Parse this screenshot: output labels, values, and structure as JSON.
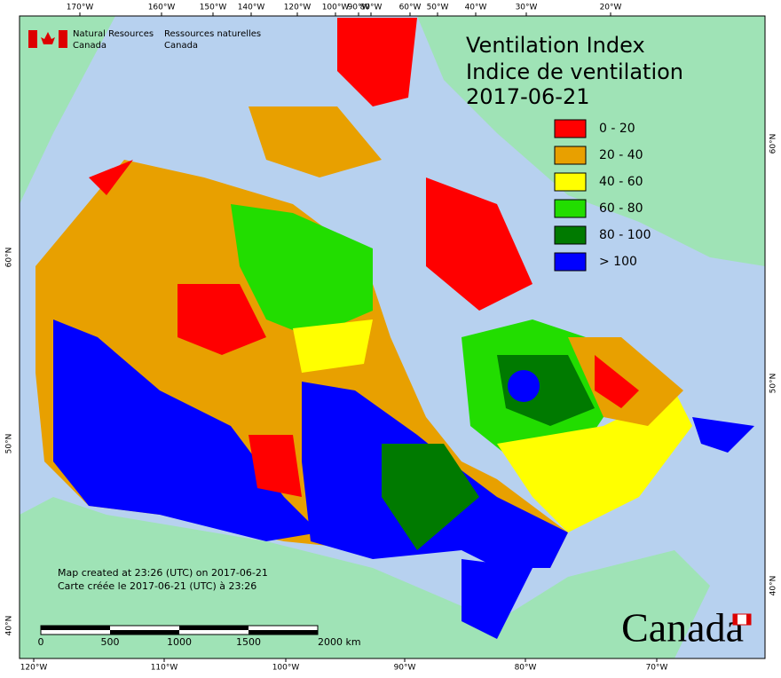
{
  "header": {
    "agency_en": [
      "Natural Resources",
      "Canada"
    ],
    "agency_fr": [
      "Ressources naturelles",
      "Canada"
    ]
  },
  "title": [
    "Ventilation Index",
    "Indice de ventilation",
    "2017-06-21"
  ],
  "legend": [
    {
      "label": "0 - 20",
      "color": "#ff0000"
    },
    {
      "label": "20 - 40",
      "color": "#e8a000"
    },
    {
      "label": "40 - 60",
      "color": "#ffff00"
    },
    {
      "label": "60 - 80",
      "color": "#22dd00"
    },
    {
      "label": "80 - 100",
      "color": "#007a00"
    },
    {
      "label": "> 100",
      "color": "#0000ff"
    }
  ],
  "top_longitudes": [
    "170°W",
    "160°W",
    "150°W",
    "140°W",
    "120°W",
    "100°W",
    "90°W",
    "80°W",
    "60°W",
    "50°W",
    "40°W",
    "30°W",
    "20°W"
  ],
  "bottom_longitudes": [
    "120°W",
    "110°W",
    "100°W",
    "90°W",
    "80°W",
    "70°W"
  ],
  "left_latitudes": [
    "60°N",
    "50°N",
    "40°N"
  ],
  "right_latitudes": [
    "60°N",
    "50°N",
    "40°N"
  ],
  "notes": [
    "Map created at 23:26 (UTC) on 2017-06-21",
    "Carte créée le 2017-06-21 (UTC) à 23:26"
  ],
  "scale_bar": [
    "0",
    "500",
    "1000",
    "1500",
    "2000 km"
  ],
  "wordmark": "Canada"
}
